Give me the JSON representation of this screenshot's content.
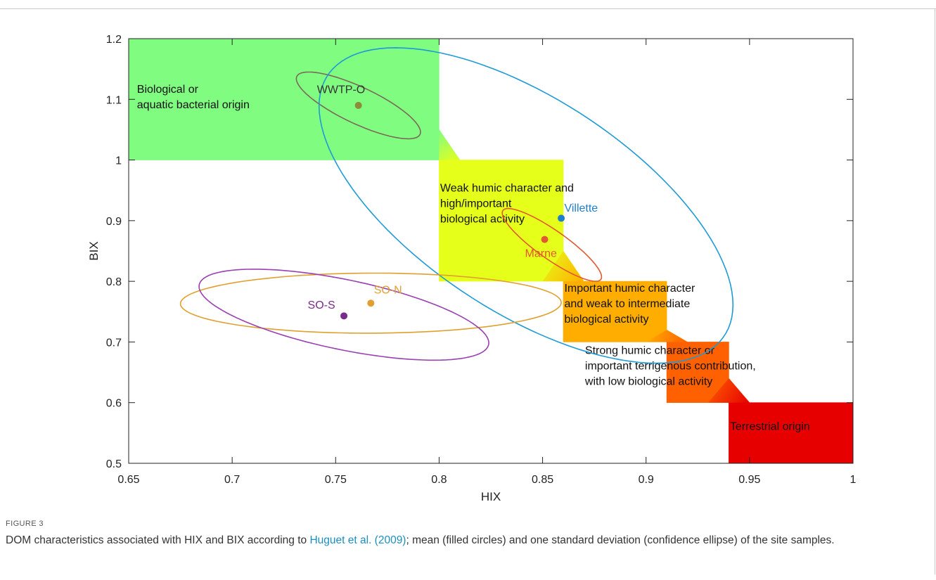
{
  "figure": {
    "label": "FIGURE 3",
    "caption_before": "DOM characteristics associated with HIX and BIX according to ",
    "caption_ref": "Huguet et al. (2009)",
    "caption_after": "; mean (filled circles) and one standard deviation (confidence ellipse) of the site samples.",
    "ref_color": "#1a8fc0"
  },
  "chart_data": {
    "type": "scatter",
    "title": "",
    "xlabel": "HIX",
    "ylabel": "BIX",
    "xlim": [
      0.65,
      1.0
    ],
    "ylim": [
      0.5,
      1.2
    ],
    "xticks": [
      0.65,
      0.7,
      0.75,
      0.8,
      0.85,
      0.9,
      0.95,
      1.0
    ],
    "xtick_labels": [
      "0.65",
      "0.7",
      "0.75",
      "0.8",
      "0.85",
      "0.9",
      "0.95",
      "1"
    ],
    "yticks": [
      0.5,
      0.6,
      0.7,
      0.8,
      0.9,
      1.0,
      1.1,
      1.2
    ],
    "ytick_labels": [
      "0.5",
      "0.6",
      "0.7",
      "0.8",
      "0.9",
      "1",
      "1.1",
      "1.2"
    ],
    "grid": false,
    "legend": "none",
    "regions": [
      {
        "name": "Biological or aquatic bacterial origin",
        "lines": [
          "Biological or",
          "aquatic bacterial origin"
        ],
        "label_at": [
          0.654,
          1.111
        ],
        "color": "#80fc80",
        "polygon": [
          [
            0.65,
            1.2
          ],
          [
            0.8,
            1.2
          ],
          [
            0.8,
            1.05
          ],
          [
            0.81,
            1.0
          ],
          [
            0.65,
            1.0
          ]
        ]
      },
      {
        "name": "Weak humic character and high/important biological activity",
        "lines": [
          "Weak humic character and",
          "high/important",
          "biological activity"
        ],
        "label_at": [
          0.8005,
          0.948
        ],
        "color": "#e6ff1a",
        "polygon": [
          [
            0.8,
            1.0
          ],
          [
            0.86,
            1.0
          ],
          [
            0.86,
            0.85
          ],
          [
            0.87,
            0.8
          ],
          [
            0.8,
            0.8
          ]
        ]
      },
      {
        "name": "Important humic character and weak to intermediate biological activity",
        "lines": [
          "Important humic character",
          "and weak to intermediate",
          "biological activity"
        ],
        "label_at": [
          0.8605,
          0.783
        ],
        "color": "#ffae00",
        "polygon": [
          [
            0.86,
            0.8
          ],
          [
            0.91,
            0.8
          ],
          [
            0.91,
            0.72
          ],
          [
            0.92,
            0.7
          ],
          [
            0.86,
            0.7
          ]
        ]
      },
      {
        "name": "Strong humic character or important terrigenous contribution, with low biological activity",
        "lines": [
          "Strong humic character or",
          "important terrigenous contribution,",
          "with low biological activity"
        ],
        "label_at": [
          0.8705,
          0.68
        ],
        "color": "#ff6000",
        "polygon": [
          [
            0.91,
            0.7
          ],
          [
            0.94,
            0.7
          ],
          [
            0.94,
            0.64
          ],
          [
            0.95,
            0.6
          ],
          [
            0.91,
            0.6
          ]
        ]
      },
      {
        "name": "Terrestrial origin",
        "lines": [
          "Terrestrial origin"
        ],
        "label_at": [
          0.9405,
          0.555
        ],
        "color": "#e60000",
        "polygon": [
          [
            0.94,
            0.6
          ],
          [
            1.0,
            0.6
          ],
          [
            1.0,
            0.5
          ],
          [
            0.94,
            0.5
          ]
        ]
      }
    ],
    "transitions": [
      {
        "color_from": "#80fc80",
        "color_to": "#e6ff1a",
        "polygon": [
          [
            0.8,
            1.05
          ],
          [
            0.81,
            1.0
          ],
          [
            0.8,
            1.0
          ]
        ]
      },
      {
        "color_from": "#e6ff1a",
        "color_to": "#ffae00",
        "polygon": [
          [
            0.86,
            0.85
          ],
          [
            0.87,
            0.8
          ],
          [
            0.85,
            0.8
          ]
        ]
      },
      {
        "color_from": "#ffae00",
        "color_to": "#ff6000",
        "polygon": [
          [
            0.91,
            0.72
          ],
          [
            0.92,
            0.7
          ],
          [
            0.9,
            0.7
          ]
        ]
      },
      {
        "color_from": "#ff6000",
        "color_to": "#e60000",
        "polygon": [
          [
            0.94,
            0.64
          ],
          [
            0.95,
            0.6
          ],
          [
            0.93,
            0.6
          ]
        ]
      }
    ],
    "series": [
      {
        "name": "WWTP-O",
        "color": "#8c8c3c",
        "label_color": "#333333",
        "mean": [
          0.761,
          1.09
        ],
        "label_at": [
          0.741,
          1.11
        ],
        "ellipse": {
          "center": [
            0.761,
            1.09
          ],
          "x_extent": 0.03,
          "y_extent": 0.055,
          "tilt": -0.8,
          "color": "#7a6a58"
        }
      },
      {
        "name": "Villette",
        "color": "#1f7fc8",
        "label_color": "#1f7fc8",
        "mean": [
          0.859,
          0.904
        ],
        "label_at": [
          0.8605,
          0.915
        ],
        "ellipse": {
          "center": [
            0.842,
            0.925
          ],
          "x_extent": 0.1,
          "y_extent": 0.26,
          "tilt": -0.63,
          "color": "#1f9ad6"
        }
      },
      {
        "name": "Marne",
        "color": "#e05a30",
        "label_color": "#e05a30",
        "mean": [
          0.851,
          0.869
        ],
        "label_at": [
          0.8415,
          0.84
        ],
        "ellipse": {
          "center": [
            0.8545,
            0.86
          ],
          "x_extent": 0.024,
          "y_extent": 0.06,
          "tilt": -0.88,
          "color": "#e05a30"
        }
      },
      {
        "name": "SO-N",
        "color": "#e0a030",
        "label_color": "#e0a030",
        "mean": [
          0.767,
          0.764
        ],
        "label_at": [
          0.7685,
          0.78
        ],
        "ellipse": {
          "center": [
            0.767,
            0.764
          ],
          "x_extent": 0.092,
          "y_extent": 0.0495,
          "tilt": 0.02,
          "color": "#e0a030"
        }
      },
      {
        "name": "SO-S",
        "color": "#7a2a8c",
        "label_color": "#7a2a8c",
        "mean": [
          0.754,
          0.743
        ],
        "label_at": [
          0.7365,
          0.755
        ],
        "ellipse": {
          "center": [
            0.754,
            0.745
          ],
          "x_extent": 0.07,
          "y_extent": 0.075,
          "tilt": -0.62,
          "color": "#9a40b0"
        }
      }
    ]
  }
}
